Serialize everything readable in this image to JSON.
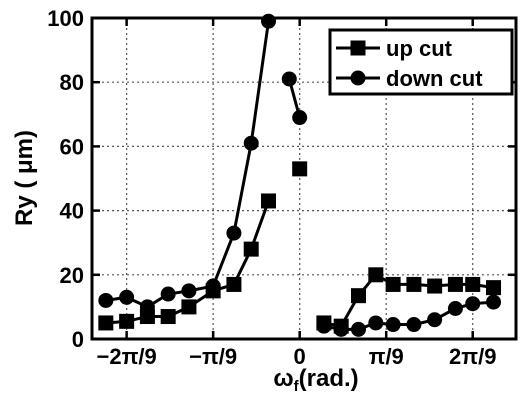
{
  "chart_data": {
    "type": "line",
    "xlabel": "ω",
    "xlabel_sub": "f",
    "xlabel_unit": "(rad.)",
    "ylabel": "Ry ( μm)",
    "ylim": [
      0,
      100
    ],
    "xlim": [
      -0.8378,
      0.8727
    ],
    "yticks": [
      0,
      20,
      40,
      60,
      80,
      100
    ],
    "xticks": [
      {
        "value": -0.6981,
        "label": "−2π/9"
      },
      {
        "value": -0.3491,
        "label": "−π/9"
      },
      {
        "value": 0,
        "label": "0"
      },
      {
        "value": 0.3491,
        "label": "π/9"
      },
      {
        "value": 0.6981,
        "label": "2π/9"
      }
    ],
    "grid": true,
    "legend_position": "top-right",
    "series": [
      {
        "name": "up cut",
        "marker": "square",
        "segments": [
          [
            [
              -0.782,
              5
            ],
            [
              -0.6981,
              5.5
            ],
            [
              -0.6143,
              7
            ],
            [
              -0.5305,
              7
            ],
            [
              -0.4468,
              10
            ],
            [
              -0.3491,
              15
            ],
            [
              -0.2653,
              17
            ],
            [
              -0.1955,
              28
            ],
            [
              -0.1257,
              43
            ]
          ],
          [
            [
              0.0,
              53
            ]
          ],
          [
            [
              0.0977,
              5
            ],
            [
              0.1675,
              4
            ],
            [
              0.2373,
              13.5
            ],
            [
              0.3071,
              20
            ],
            [
              0.377,
              17
            ],
            [
              0.4608,
              17
            ],
            [
              0.5445,
              16.5
            ],
            [
              0.6283,
              17
            ],
            [
              0.6981,
              17
            ],
            [
              0.782,
              16
            ]
          ]
        ]
      },
      {
        "name": "down cut",
        "marker": "circle",
        "segments": [
          [
            [
              -0.782,
              12
            ],
            [
              -0.6981,
              13
            ],
            [
              -0.6143,
              10
            ],
            [
              -0.5305,
              14
            ],
            [
              -0.4468,
              15
            ],
            [
              -0.3491,
              16.5
            ],
            [
              -0.2653,
              33
            ],
            [
              -0.1955,
              61
            ],
            [
              -0.1257,
              99
            ]
          ],
          [
            [
              0.0,
              69
            ],
            [
              -0.0419,
              81
            ]
          ],
          [
            [
              0.0977,
              4
            ],
            [
              0.1675,
              3
            ],
            [
              0.2373,
              3
            ],
            [
              0.3071,
              5
            ],
            [
              0.377,
              4.5
            ],
            [
              0.4608,
              4.5
            ],
            [
              0.5445,
              6
            ],
            [
              0.6283,
              9.5
            ],
            [
              0.6981,
              11
            ],
            [
              0.782,
              11.5
            ]
          ]
        ]
      }
    ]
  }
}
